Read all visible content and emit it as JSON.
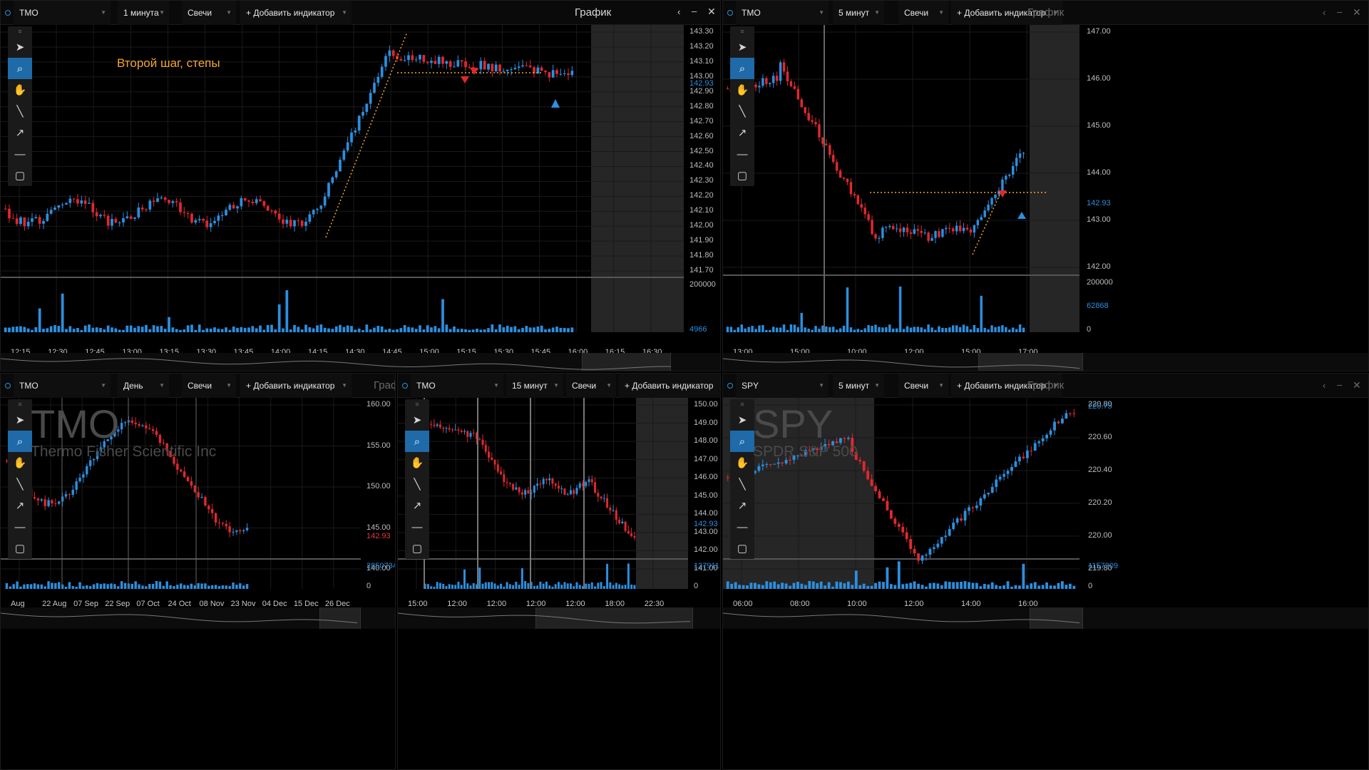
{
  "panels": [
    {
      "id": "p1",
      "ticker": "TMO",
      "interval": "1 минута",
      "chart_type": "Свечи",
      "add_indicator": "+ Добавить индикатор",
      "title": "График",
      "annotation": "Второй шаг, степы",
      "price_ticks": [
        "143.30",
        "143.20",
        "143.10",
        "143.00",
        "142.90",
        "142.80",
        "142.70",
        "142.60",
        "142.50",
        "142.40",
        "142.30",
        "142.20",
        "142.10",
        "142.00",
        "141.90",
        "141.80",
        "141.70"
      ],
      "last_price": "142.93",
      "volume_ticks": [
        "200000",
        "4966"
      ],
      "time_ticks": [
        "12:15",
        "12:30",
        "12:45",
        "13:00",
        "13:15",
        "13:30",
        "13:45",
        "14:00",
        "14:15",
        "14:30",
        "14:45",
        "15:00",
        "15:15",
        "15:30",
        "15:45",
        "16:00",
        "16:15",
        "16:30"
      ]
    },
    {
      "id": "p2",
      "ticker": "TMO",
      "interval": "5 минут",
      "chart_type": "Свечи",
      "add_indicator": "+ Добавить индикатор",
      "title": "График",
      "price_ticks": [
        "147.00",
        "146.00",
        "145.00",
        "144.00",
        "143.00",
        "142.00"
      ],
      "last_price": "142.93",
      "volume_ticks": [
        "200000",
        "62868",
        "0"
      ],
      "time_ticks": [
        "13:00",
        "15:00",
        "10:00",
        "12:00",
        "15:00",
        "17:00"
      ]
    },
    {
      "id": "p3",
      "ticker": "TMO",
      "interval": "День",
      "chart_type": "Свечи",
      "add_indicator": "+ Добавить индикатор",
      "title": "График",
      "watermark_symbol": "TMO",
      "watermark_name": "Thermo Fisher Scientific Inc",
      "price_ticks": [
        "160.00",
        "155.00",
        "150.00",
        "145.00",
        "140.00"
      ],
      "last_price": "142.93",
      "volume_ticks": [
        "2850734",
        "0"
      ],
      "time_ticks": [
        "Aug",
        "22 Aug",
        "07 Sep",
        "22 Sep",
        "07 Oct",
        "24 Oct",
        "08 Nov",
        "23 Nov",
        "04 Dec",
        "15 Dec",
        "26 Dec"
      ]
    },
    {
      "id": "p4",
      "ticker": "TMO",
      "interval": "15 минут",
      "chart_type": "Свечи",
      "add_indicator": "+ Добавить индикатор",
      "price_ticks": [
        "150.00",
        "149.00",
        "148.00",
        "147.00",
        "146.00",
        "145.00",
        "144.00",
        "143.00",
        "142.00",
        "141.00"
      ],
      "last_price": "142.93",
      "volume_ticks": [
        "137911",
        "0"
      ],
      "time_ticks": [
        "15:00",
        "12:00",
        "12:00",
        "12:00",
        "12:00",
        "18:00",
        "22:30"
      ]
    },
    {
      "id": "p5",
      "ticker": "SPY",
      "interval": "5 минут",
      "chart_type": "Свечи",
      "add_indicator": "+ Добавить индикатор",
      "title": "График",
      "watermark_symbol": "SPY",
      "watermark_name": "SPDR S&P 500",
      "price_ticks": [
        "220.80",
        "220.60",
        "220.40",
        "220.20",
        "220.00",
        "219.80"
      ],
      "last_price": "220.75",
      "volume_ticks": [
        "1157309",
        "0"
      ],
      "time_ticks": [
        "06:00",
        "08:00",
        "10:00",
        "12:00",
        "14:00",
        "16:00"
      ]
    }
  ],
  "colors": {
    "up": "#2b8fe0",
    "down": "#e0282e",
    "grid": "#1a1a1a",
    "annotation": "#f0a630",
    "session_shade": "#262626"
  },
  "icons": [
    "cursor-icon",
    "zoom-icon",
    "hand-icon",
    "line-icon",
    "arrow-icon",
    "hline-icon",
    "rect-icon",
    "grip-icon"
  ]
}
